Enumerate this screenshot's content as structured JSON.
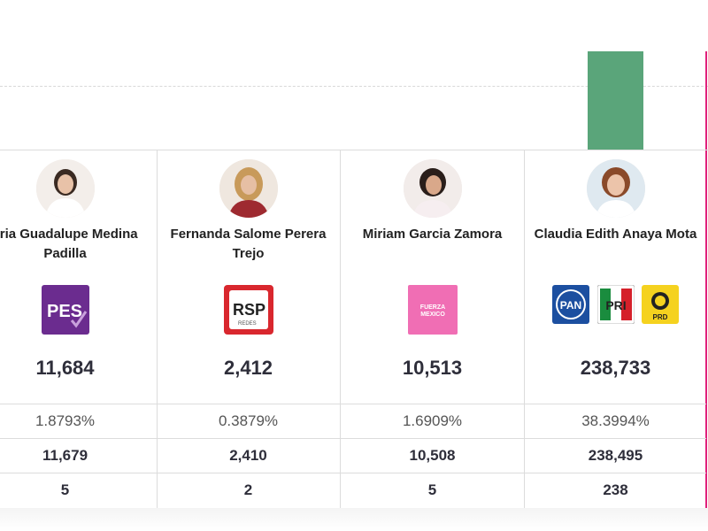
{
  "colors": {
    "winner_bar": "#5aa57a",
    "accent_line": "#e0207a"
  },
  "candidates": [
    {
      "name": "aria Guadalupe Medina Padilla",
      "parties": [
        "PES"
      ],
      "votes": "11,684",
      "percent": "1.8793%",
      "valid_votes": "11,679",
      "seats": "5"
    },
    {
      "name": "Fernanda Salome Perera Trejo",
      "parties": [
        "RSP"
      ],
      "party_sub": "REDES",
      "votes": "2,412",
      "percent": "0.3879%",
      "valid_votes": "2,410",
      "seats": "2"
    },
    {
      "name": "Miriam Garcia Zamora",
      "parties": [
        "FUERZA MEXICO"
      ],
      "party_line1": "FUERZA",
      "party_line2": "MEXICO",
      "votes": "10,513",
      "percent": "1.6909%",
      "valid_votes": "10,508",
      "seats": "5"
    },
    {
      "name": "Claudia Edith Anaya Mota",
      "parties": [
        "PAN",
        "PRI",
        "PRD"
      ],
      "votes": "238,733",
      "percent": "38.3994%",
      "valid_votes": "238,495",
      "seats": "238"
    }
  ]
}
